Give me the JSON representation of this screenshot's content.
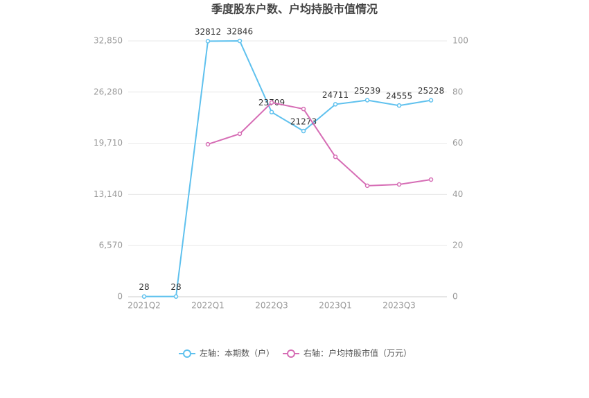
{
  "chart_data": {
    "type": "line",
    "title": "季度股东户数、户均持股市值情况",
    "categories": [
      "2021Q2",
      null,
      "2022Q1",
      null,
      "2022Q3",
      null,
      "2023Q1",
      null,
      "2023Q3",
      null
    ],
    "series": [
      {
        "name": "左轴：本期数（户）",
        "color": "#5fc1ee",
        "values": [
          28,
          28,
          32812,
          32846,
          23709,
          21273,
          24711,
          25239,
          24555,
          25228
        ]
      },
      {
        "name": "右轴：户均持股市值（万元）",
        "color": "#d66db5",
        "axis": "y2",
        "values": [
          null,
          null,
          59.6,
          63.7,
          75.9,
          73.4,
          54.7,
          43.4,
          43.9,
          45.8
        ]
      }
    ],
    "ylim": [
      0,
      32850
    ],
    "yticks": [
      0,
      {
        "value": 6570,
        "label": "6,570"
      },
      {
        "value": 13140,
        "label": "13,140"
      },
      {
        "value": 19710,
        "label": "19,710"
      },
      {
        "value": 26280,
        "label": "26,280"
      },
      {
        "value": 32850,
        "label": "32,850"
      }
    ],
    "y2lim": [
      0,
      100
    ],
    "y2ticks": [
      0,
      20,
      40,
      60,
      80,
      100
    ],
    "grid": true
  }
}
